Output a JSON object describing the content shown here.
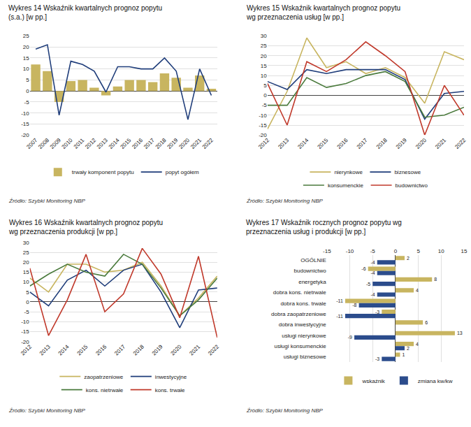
{
  "chart_data": [
    {
      "type": "bar",
      "title": "Wykres 14 Wskaźnik kwartalnych prognoz popytu",
      "subtitle": "(s.a.) [w pp.]",
      "categories": [
        2007,
        2008,
        2009,
        2010,
        2011,
        2012,
        2013,
        2014,
        2015,
        2016,
        2017,
        2018,
        2019,
        2020,
        2021,
        2022
      ],
      "series": [
        {
          "name": "trwały komponent popytu",
          "type": "bar",
          "color": "#c8b560",
          "values": [
            12,
            9,
            -5,
            4.5,
            5,
            1.5,
            -2,
            2,
            5,
            5,
            4,
            8,
            6,
            1.5,
            7,
            1
          ]
        },
        {
          "name": "popyt ogółem",
          "type": "line",
          "color": "#1f3d7a",
          "values": [
            19,
            21,
            -11,
            13.5,
            12,
            9,
            -0.5,
            11,
            11,
            10,
            10,
            15,
            9,
            -13,
            10,
            -2
          ]
        }
      ],
      "ylim": [
        -20,
        25
      ],
      "yticks": [
        -20,
        -15,
        -10,
        -5,
        0,
        5,
        10,
        15,
        20,
        25
      ],
      "grid": true,
      "legend": "bottom",
      "annotations": [
        "Źródło: Szybki Monitoring NBP"
      ]
    },
    {
      "type": "line",
      "title": "Wykres 15 Wskaźnik kwartalnych prognoz popytu",
      "subtitle": "wg przeznaczenia usług [w pp.]",
      "categories": [
        2012,
        2013,
        2014,
        2015,
        2016,
        2017,
        2018,
        2019,
        2020,
        2021,
        2022
      ],
      "series": [
        {
          "name": "nierynkowe",
          "color": "#c8b560",
          "values": [
            -17,
            2,
            29,
            14,
            17,
            11,
            14,
            9,
            -4,
            22,
            18
          ]
        },
        {
          "name": "biznesowe",
          "color": "#1f3d7a",
          "values": [
            7,
            3,
            13,
            11,
            13,
            13,
            13,
            8,
            -12,
            1,
            2
          ]
        },
        {
          "name": "konsumenckie",
          "color": "#4a7a3c",
          "values": [
            -5,
            -5,
            9,
            4,
            6,
            10,
            12,
            7,
            -11,
            -10,
            -6
          ]
        },
        {
          "name": "budownictwo",
          "color": "#c0392b",
          "values": [
            6,
            -15,
            17,
            12,
            18,
            27,
            20,
            12,
            -20,
            5,
            -10
          ]
        }
      ],
      "ylim": [
        -20,
        30
      ],
      "yticks": [
        -20,
        -15,
        -10,
        -5,
        0,
        5,
        10,
        15,
        20,
        25,
        30
      ],
      "grid": true,
      "legend": "bottom",
      "annotations": [
        "Źródło: Szybki Monitoring NBP"
      ]
    },
    {
      "type": "line",
      "title": "Wykres 16 Wskaźnik kwartalnych prognoz popytu",
      "subtitle": "wg przeznaczenia produkcji [w pp.]",
      "categories": [
        2012,
        2013,
        2014,
        2015,
        2016,
        2017,
        2018,
        2019,
        2020,
        2021,
        2022
      ],
      "series": [
        {
          "name": "zaopatrzeniowe",
          "color": "#c8b560",
          "values": [
            12,
            5,
            19,
            19,
            15,
            16,
            20,
            8,
            -7,
            2,
            13
          ]
        },
        {
          "name": "inwestycyjne",
          "color": "#1f3d7a",
          "values": [
            5,
            -2,
            11,
            16,
            8,
            16,
            19,
            5,
            -13,
            6,
            7
          ]
        },
        {
          "name": "kons. nietrwałe",
          "color": "#4a7a3c",
          "values": [
            8,
            14,
            19,
            15,
            13,
            24,
            19,
            7,
            -7,
            1,
            12
          ]
        },
        {
          "name": "kons. trwałe",
          "color": "#c0392b",
          "values": [
            17,
            -17,
            1,
            24,
            -5,
            4,
            27,
            14,
            -8,
            23,
            -18
          ]
        }
      ],
      "ylim": [
        -20,
        30
      ],
      "yticks": [
        -20,
        -15,
        -10,
        -5,
        0,
        5,
        10,
        15,
        20,
        25,
        30
      ],
      "grid": true,
      "legend": "bottom",
      "annotations": [
        "Źródło: Szybki Monitoring NBP"
      ]
    },
    {
      "type": "bar",
      "orientation": "horizontal",
      "title": "Wykres 17 Wskaźnik rocznych prognoz popytu wg",
      "subtitle": "przeznaczenia usług i produkcji [w pp.]",
      "categories": [
        "OGÓLNIE",
        "budownictwo",
        "energetyka",
        "dobra kons. nietrwale",
        "dobra kons. trwale",
        "dobra zaopatrzeniowe",
        "dobra inwestycyjne",
        "usługi nierynkowe",
        "usługi konsumenckie",
        "usługi biznesowe"
      ],
      "series": [
        {
          "name": "wskaźnik",
          "color": "#c8b560",
          "values": [
            2,
            -6,
            8,
            4,
            -11,
            -3,
            6,
            13,
            4,
            1
          ]
        },
        {
          "name": "zmiana kw/kw",
          "color": "#2b4c8c",
          "values": [
            -4,
            -4,
            -5,
            -4,
            -8,
            -11,
            0,
            -9,
            2,
            -3
          ],
          "value_labels": [
            "-4",
            "-4",
            "-5",
            "-4",
            "-8",
            "-11",
            null,
            "-9",
            "2",
            "-3"
          ]
        }
      ],
      "xlim": [
        -15,
        15
      ],
      "xticks": [
        -15,
        -10,
        -5,
        0,
        5,
        10,
        15
      ],
      "data_labels": true,
      "grid": true,
      "legend": "bottom",
      "annotations": [
        "Źródło: Szybki Monitoring NBP"
      ]
    }
  ]
}
